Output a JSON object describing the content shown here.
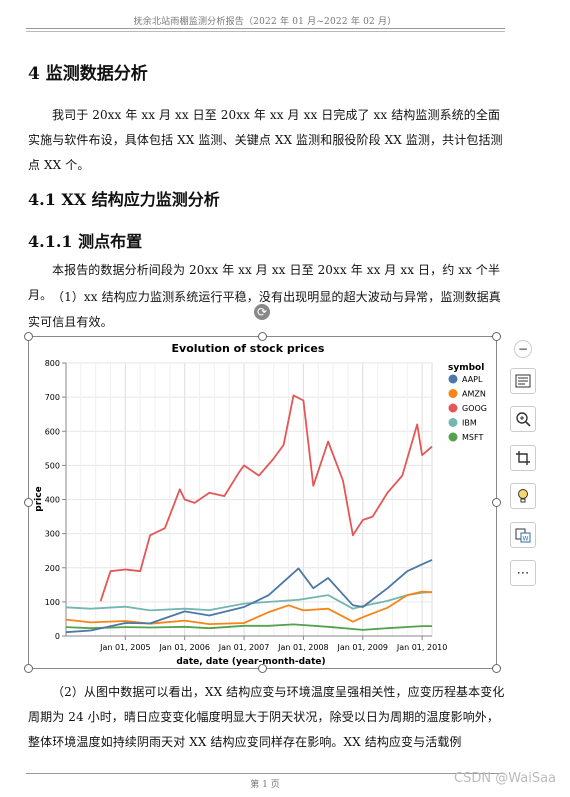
{
  "header": {
    "title": "抚余北站雨棚监测分析报告（2022 年 01 月~2022 年 02 月）"
  },
  "section": {
    "h1": "4  监测数据分析",
    "p1": "我司于 20xx 年 xx 月 xx 日至 20xx 年 xx 月 xx 日完成了 xx 结构监测系统的全面实施与软件布设，具体包括 XX 监测、关键点 XX 监测和服役阶段 XX 监测，共计包括测点 XX 个。",
    "h2": "4.1 XX 结构应力监测分析",
    "h3": "4.1.1 测点布置",
    "p2": "本报告的数据分析间段为 20xx 年 xx 月 xx 日至 20xx 年 xx 月 xx 日，约 xx 个半月。",
    "p3": "（1）xx 结构应力监测系统运行平稳，没有出现明显的超大波动与异常，监测数据真实可信且有效。",
    "p4": "（2）从图中数据可以看出，XX 结构应变与环境温度呈强相关性，应变历程基本变化周期为 24 小时，晴日应变变化幅度明显大于阴天状况，除受以日为周期的温度影响外，整体环境温度如持续阴雨天对 XX 结构应变同样存在影响。XX 结构应变与活载例"
  },
  "toolbar": {
    "icons": [
      "minus-circle-icon",
      "wrap-text-icon",
      "zoom-in-icon",
      "crop-icon",
      "idea-bulb-icon",
      "image-convert-icon",
      "more-icon"
    ],
    "more_label": "⋯"
  },
  "footer": {
    "page": "第 1 页",
    "watermark": "CSDN @WaiSaa"
  },
  "colors": {
    "AAPL": "#4c78a8",
    "AMZN": "#f58518",
    "GOOG": "#e45756",
    "IBM": "#72b7b2",
    "MSFT": "#54a24b"
  },
  "chart_data": {
    "type": "line",
    "title": "Evolution of stock prices",
    "xlabel": "date, date (year-month-date)",
    "ylabel": "price",
    "ylim": [
      0,
      800
    ],
    "yticks": [
      0,
      100,
      200,
      300,
      400,
      500,
      600,
      700,
      800
    ],
    "xticks": [
      "Jan 01, 2005",
      "Jan 01, 2006",
      "Jan 01, 2007",
      "Jan 01, 2008",
      "Jan 01, 2009",
      "Jan 01, 2010"
    ],
    "xlim": [
      "2004-01-01",
      "2010-03-01"
    ],
    "grid": true,
    "legend": {
      "title": "symbol",
      "position": "right"
    },
    "series": [
      {
        "name": "MSFT",
        "x": [
          "2004-01",
          "2004-06",
          "2005-01",
          "2005-06",
          "2006-01",
          "2006-06",
          "2007-01",
          "2007-06",
          "2007-11",
          "2008-06",
          "2009-01",
          "2009-06",
          "2010-01",
          "2010-03"
        ],
        "y": [
          26,
          23,
          26,
          25,
          27,
          23,
          30,
          30,
          34,
          27,
          18,
          23,
          29,
          29
        ]
      },
      {
        "name": "IBM",
        "x": [
          "2004-01",
          "2004-06",
          "2005-01",
          "2005-06",
          "2006-01",
          "2006-06",
          "2007-01",
          "2007-06",
          "2007-12",
          "2008-06",
          "2008-11",
          "2009-01",
          "2009-06",
          "2009-10",
          "2010-01",
          "2010-03"
        ],
        "y": [
          84,
          80,
          86,
          75,
          80,
          76,
          95,
          100,
          106,
          120,
          80,
          88,
          103,
          120,
          127,
          129
        ]
      },
      {
        "name": "AMZN",
        "x": [
          "2004-01",
          "2004-06",
          "2005-01",
          "2005-06",
          "2006-01",
          "2006-06",
          "2007-01",
          "2007-06",
          "2007-10",
          "2008-01",
          "2008-06",
          "2008-11",
          "2009-01",
          "2009-06",
          "2009-10",
          "2010-01",
          "2010-03"
        ],
        "y": [
          48,
          40,
          44,
          36,
          45,
          35,
          38,
          70,
          90,
          75,
          80,
          42,
          55,
          83,
          120,
          130,
          128
        ]
      },
      {
        "name": "AAPL",
        "x": [
          "2004-01",
          "2004-06",
          "2005-01",
          "2005-06",
          "2006-01",
          "2006-06",
          "2007-01",
          "2007-06",
          "2007-12",
          "2008-03",
          "2008-06",
          "2008-11",
          "2009-01",
          "2009-06",
          "2009-10",
          "2010-01",
          "2010-03"
        ],
        "y": [
          11,
          16,
          38,
          37,
          72,
          60,
          85,
          120,
          198,
          140,
          170,
          90,
          85,
          140,
          190,
          210,
          223
        ]
      },
      {
        "name": "GOOG",
        "x": [
          "2004-08",
          "2004-10",
          "2005-01",
          "2005-04",
          "2005-06",
          "2005-09",
          "2005-12",
          "2006-01",
          "2006-03",
          "2006-06",
          "2006-09",
          "2006-12",
          "2007-01",
          "2007-04",
          "2007-07",
          "2007-09",
          "2007-11",
          "2008-01",
          "2008-03",
          "2008-06",
          "2008-09",
          "2008-11",
          "2009-01",
          "2009-03",
          "2009-06",
          "2009-09",
          "2009-12",
          "2010-01",
          "2010-03"
        ],
        "y": [
          102,
          190,
          195,
          190,
          295,
          316,
          430,
          400,
          390,
          420,
          410,
          480,
          500,
          470,
          520,
          560,
          705,
          690,
          440,
          570,
          455,
          295,
          340,
          350,
          420,
          470,
          620,
          530,
          555
        ]
      }
    ]
  }
}
